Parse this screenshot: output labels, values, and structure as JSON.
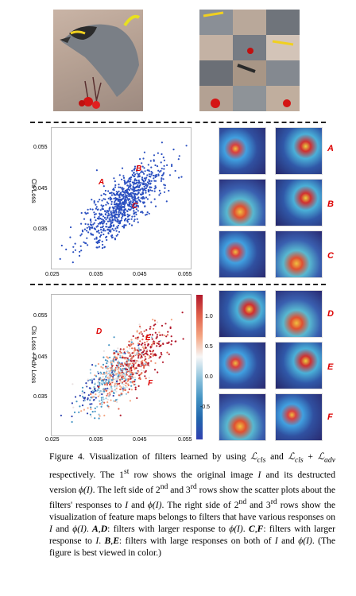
{
  "scatter1": {
    "ylabel": "Cls Loss",
    "xticks": [
      "0.025",
      "0.035",
      "0.045",
      "0.055"
    ],
    "yticks": [
      "0.055",
      "0.045",
      "0.035"
    ],
    "points": [
      "A",
      "B",
      "C"
    ]
  },
  "scatter2": {
    "ylabel": "Cls Loss + Adv Loss",
    "xticks": [
      "0.025",
      "0.035",
      "0.045",
      "0.055"
    ],
    "yticks": [
      "0.055",
      "0.045",
      "0.035"
    ],
    "points": [
      "D",
      "E",
      "F"
    ],
    "colorbar_ticks": [
      "1.0",
      "0.5",
      "0.0",
      "-0.5"
    ]
  },
  "row_labels": [
    "A",
    "B",
    "C",
    "D",
    "E",
    "F"
  ],
  "caption": {
    "p1": "Figure 4. Visualization of filters learned by using ",
    "m1": "ℒ",
    "s1": "cls",
    "p2": " and ",
    "m2": "ℒ",
    "s2": "cls",
    "p3": " + ",
    "m3": "ℒ",
    "s3": "adv",
    "p4": " respectively. The 1",
    "sup1": "st",
    "p5": " row shows the original image ",
    "i1": "I",
    "p6": " and its destructed version ",
    "i2": "ϕ(I)",
    "p7": ". The left side of 2",
    "sup2": "nd",
    "p8": " and 3",
    "sup3": "rd",
    "p9": " rows show the scatter plots about the filters' responses to ",
    "i3": "I",
    "p10": " and ",
    "i4": "ϕ(I)",
    "p11": ". The right side of 2",
    "sup4": "nd",
    "p12": " and 3",
    "sup5": "rd",
    "p13": " rows show the visualization of feature maps belongs to filters that have various responses on ",
    "i5": "I",
    "p14": " and ",
    "i6": "ϕ(I)",
    "p15": ". ",
    "b1": "A",
    "p16": ",",
    "b2": "D",
    "p17": ": filters with larger response to ",
    "i7": "ϕ(I)",
    "p18": ". ",
    "b3": "C",
    "p19": ",",
    "b4": "F",
    "p20": ": filters with larger response to ",
    "i8": "I",
    "p21": ". ",
    "b5": "B",
    "p22": ",",
    "b6": "E",
    "p23": ": filters with large responses on both of ",
    "i9": "I",
    "p24": " and ",
    "i10": "ϕ(I)",
    "p25": ". (The figure is best viewed in color.)"
  }
}
